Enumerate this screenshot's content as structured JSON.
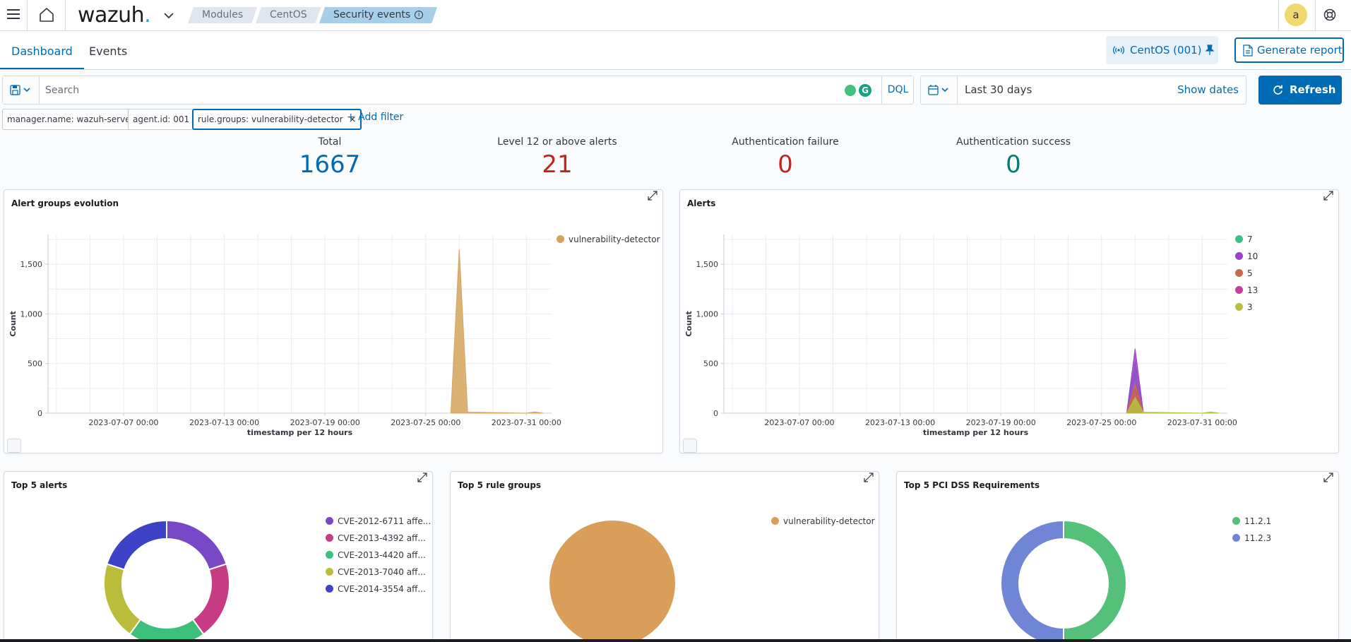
{
  "header": {
    "logo": "wazuh",
    "logo_dot": ".",
    "breadcrumbs": [
      "Modules",
      "CentOS",
      "Security events"
    ],
    "avatar_initial": "a"
  },
  "tabs": {
    "items": [
      "Dashboard",
      "Events"
    ],
    "active": "Dashboard"
  },
  "agent_pill": {
    "label": "CentOS (001)"
  },
  "report_button": {
    "label": "Generate report"
  },
  "search": {
    "placeholder": "Search",
    "language": "DQL",
    "extension_letter": "G"
  },
  "time": {
    "range": "Last 30 days",
    "show_dates": "Show dates",
    "refresh": "Refresh"
  },
  "filters": {
    "items": [
      "manager.name: wazuh-server",
      "agent.id: 001",
      "rule.groups: vulnerability-detector"
    ],
    "remove_glyph": "×",
    "add": "+ Add filter"
  },
  "metrics": [
    {
      "label": "Total",
      "value": "1667",
      "color": "#006bb4"
    },
    {
      "label": "Level 12 or above alerts",
      "value": "21",
      "color": "#bd271e"
    },
    {
      "label": "Authentication failure",
      "value": "0",
      "color": "#bd271e"
    },
    {
      "label": "Authentication success",
      "value": "0",
      "color": "#017d73"
    }
  ],
  "panels": {
    "alert_groups": {
      "title": "Alert groups evolution"
    },
    "alerts": {
      "title": "Alerts"
    },
    "top5_alerts": {
      "title": "Top 5 alerts"
    },
    "top5_rule_groups": {
      "title": "Top 5 rule groups"
    },
    "top5_pci": {
      "title": "Top 5 PCI DSS Requirements"
    }
  },
  "chart_data": [
    {
      "type": "area",
      "title": "Alert groups evolution",
      "xlabel": "timestamp per 12 hours",
      "ylabel": "Count",
      "x_ticks": [
        "2023-07-07 00:00",
        "2023-07-13 00:00",
        "2023-07-19 00:00",
        "2023-07-25 00:00",
        "2023-07-31 00:00"
      ],
      "y_ticks": [
        "0",
        "500",
        "1,000",
        "1,500"
      ],
      "ylim": [
        0,
        1800
      ],
      "xlim": [
        "2023-07-02 12:00",
        "2023-08-01 12:00"
      ],
      "grid": true,
      "legend": "right",
      "series": [
        {
          "name": "vulnerability-detector",
          "color": "#d6a35c",
          "points": [
            [
              "2023-07-26 12:00",
              0
            ],
            [
              "2023-07-27 00:00",
              1650
            ],
            [
              "2023-07-27 12:00",
              10
            ],
            [
              "2023-07-31 00:00",
              0
            ],
            [
              "2023-07-31 12:00",
              12
            ],
            [
              "2023-08-01 00:00",
              0
            ]
          ]
        }
      ]
    },
    {
      "type": "area",
      "title": "Alerts",
      "xlabel": "timestamp per 12 hours",
      "ylabel": "Count",
      "x_ticks": [
        "2023-07-07 00:00",
        "2023-07-13 00:00",
        "2023-07-19 00:00",
        "2023-07-25 00:00",
        "2023-07-31 00:00"
      ],
      "y_ticks": [
        "0",
        "500",
        "1,000",
        "1,500"
      ],
      "ylim": [
        0,
        1800
      ],
      "xlim": [
        "2023-07-02 12:00",
        "2023-08-01 12:00"
      ],
      "grid": true,
      "legend": "right",
      "series": [
        {
          "name": "7",
          "color": "#3cbf89",
          "points": [
            [
              "2023-07-26 12:00",
              0
            ],
            [
              "2023-07-27 00:00",
              520
            ],
            [
              "2023-07-27 12:00",
              0
            ]
          ]
        },
        {
          "name": "10",
          "color": "#9d3fd0",
          "points": [
            [
              "2023-07-26 12:00",
              0
            ],
            [
              "2023-07-27 00:00",
              650
            ],
            [
              "2023-07-27 12:00",
              0
            ]
          ]
        },
        {
          "name": "5",
          "color": "#c8694a",
          "points": [
            [
              "2023-07-26 12:00",
              0
            ],
            [
              "2023-07-27 00:00",
              300
            ],
            [
              "2023-07-27 12:00",
              0
            ]
          ]
        },
        {
          "name": "13",
          "color": "#c73c9e",
          "points": [
            [
              "2023-07-26 12:00",
              0
            ],
            [
              "2023-07-27 00:00",
              21
            ],
            [
              "2023-07-27 12:00",
              0
            ]
          ]
        },
        {
          "name": "3",
          "color": "#b9bf3e",
          "points": [
            [
              "2023-07-26 12:00",
              0
            ],
            [
              "2023-07-27 00:00",
              159
            ],
            [
              "2023-07-27 12:00",
              10
            ],
            [
              "2023-07-31 00:00",
              0
            ],
            [
              "2023-07-31 12:00",
              12
            ],
            [
              "2023-08-01 00:00",
              0
            ]
          ]
        }
      ]
    },
    {
      "type": "pie",
      "title": "Top 5 alerts",
      "donut": true,
      "legend": "right",
      "labels": [
        "CVE-2012-6711 affe...",
        "CVE-2013-4392 aff...",
        "CVE-2013-4420 aff...",
        "CVE-2013-7040 aff...",
        "CVE-2014-3554 aff..."
      ],
      "values": [
        20,
        20,
        20,
        20,
        20
      ],
      "colors": [
        "#7a48c7",
        "#c73c85",
        "#3cbf7a",
        "#bcbc3c",
        "#3c43c7"
      ]
    },
    {
      "type": "pie",
      "title": "Top 5 rule groups",
      "donut": false,
      "legend": "right",
      "labels": [
        "vulnerability-detector"
      ],
      "values": [
        100
      ],
      "colors": [
        "#d99e59"
      ]
    },
    {
      "type": "pie",
      "title": "Top 5 PCI DSS Requirements",
      "donut": true,
      "legend": "right",
      "labels": [
        "11.2.1",
        "11.2.3"
      ],
      "values": [
        50,
        50
      ],
      "colors": [
        "#54c07a",
        "#7185d6"
      ]
    }
  ]
}
